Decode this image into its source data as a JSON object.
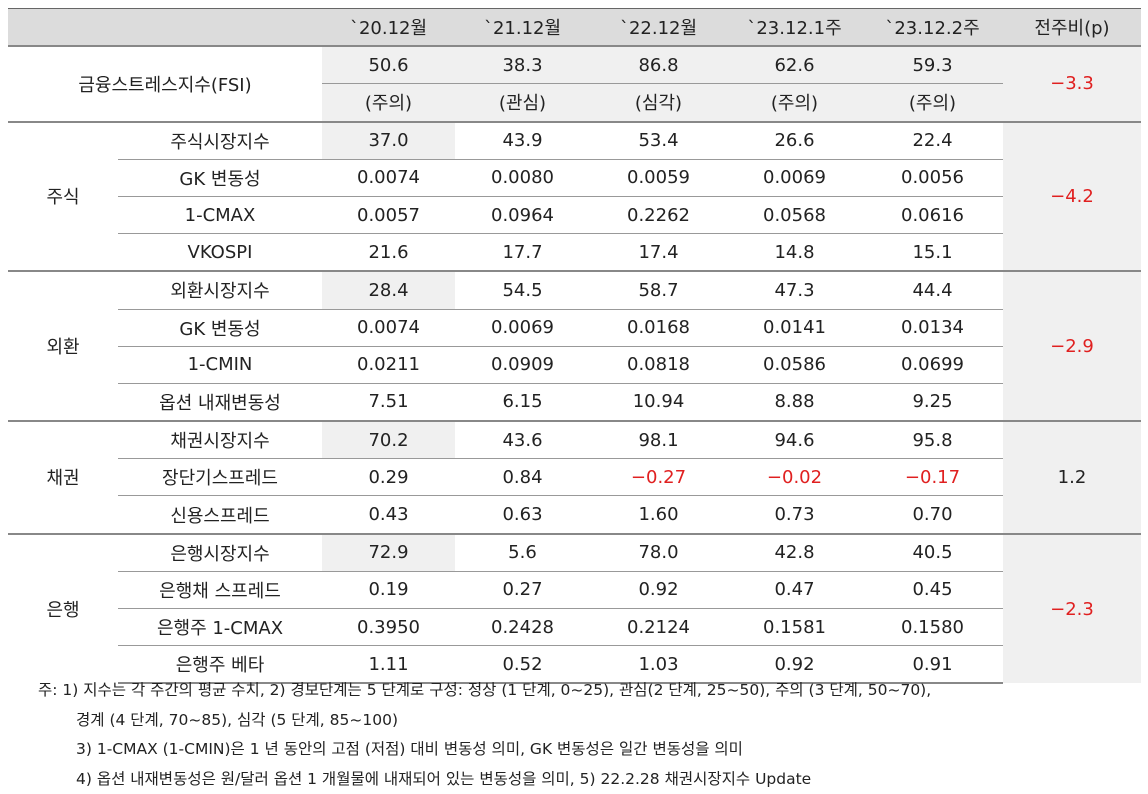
{
  "header": {
    "columns": [
      "`20.12월",
      "`21.12월",
      "`22.12월",
      "`23.12.1주",
      "`23.12.2주",
      "전주비(p)"
    ]
  },
  "fsi": {
    "label": "금융스트레스지수(FSI)",
    "values": [
      "50.6",
      "38.3",
      "86.8",
      "62.6",
      "59.3"
    ],
    "levels": [
      "(주의)",
      "(관심)",
      "(심각)",
      "(주의)",
      "(주의)"
    ],
    "change": "−3.3"
  },
  "groups": [
    {
      "label": "주식",
      "change": "−4.2",
      "rows": [
        {
          "label": "주식시장지수",
          "values": [
            "37.0",
            "43.9",
            "53.4",
            "26.6",
            "22.4"
          ]
        },
        {
          "label": "GK 변동성",
          "values": [
            "0.0074",
            "0.0080",
            "0.0059",
            "0.0069",
            "0.0056"
          ]
        },
        {
          "label": "1-CMAX",
          "values": [
            "0.0057",
            "0.0964",
            "0.2262",
            "0.0568",
            "0.0616"
          ]
        },
        {
          "label": "VKOSPI",
          "values": [
            "21.6",
            "17.7",
            "17.4",
            "14.8",
            "15.1"
          ]
        }
      ]
    },
    {
      "label": "외환",
      "change": "−2.9",
      "rows": [
        {
          "label": "외환시장지수",
          "values": [
            "28.4",
            "54.5",
            "58.7",
            "47.3",
            "44.4"
          ]
        },
        {
          "label": "GK 변동성",
          "values": [
            "0.0074",
            "0.0069",
            "0.0168",
            "0.0141",
            "0.0134"
          ]
        },
        {
          "label": "1-CMIN",
          "values": [
            "0.0211",
            "0.0909",
            "0.0818",
            "0.0586",
            "0.0699"
          ]
        },
        {
          "label": "옵션 내재변동성",
          "values": [
            "7.51",
            "6.15",
            "10.94",
            "8.88",
            "9.25"
          ]
        }
      ]
    },
    {
      "label": "채권",
      "change": "1.2",
      "rows": [
        {
          "label": "채권시장지수",
          "values": [
            "70.2",
            "43.6",
            "98.1",
            "94.6",
            "95.8"
          ]
        },
        {
          "label": "장단기스프레드",
          "values": [
            "0.29",
            "0.84",
            "−0.27",
            "−0.02",
            "−0.17"
          ]
        },
        {
          "label": "신용스프레드",
          "values": [
            "0.43",
            "0.63",
            "1.60",
            "0.73",
            "0.70"
          ]
        }
      ]
    },
    {
      "label": "은행",
      "change": "−2.3",
      "rows": [
        {
          "label": "은행시장지수",
          "values": [
            "72.9",
            "5.6",
            "78.0",
            "42.8",
            "40.5"
          ]
        },
        {
          "label": "은행채 스프레드",
          "values": [
            "0.19",
            "0.27",
            "0.92",
            "0.47",
            "0.45"
          ]
        },
        {
          "label": "은행주 1-CMAX",
          "values": [
            "0.3950",
            "0.2428",
            "0.2124",
            "0.1581",
            "0.1580"
          ]
        },
        {
          "label": "은행주 베타",
          "values": [
            "1.11",
            "0.52",
            "1.03",
            "0.92",
            "0.91"
          ]
        }
      ]
    }
  ],
  "notes": [
    "주: 1) 지수는 각 주간의 평균 수치, 2) 경보단계는 5 단계로 구성: 정상 (1 단계, 0~25), 관심(2 단계, 25~50), 주의 (3 단계, 50~70),",
    "경계 (4 단계, 70~85), 심각 (5 단계, 85~100)",
    "3) 1-CMAX (1-CMIN)은 1 년 동안의 고점 (저점) 대비 변동성 의미, GK 변동성은 일간 변동성을 의미",
    "4) 옵션 내재변동성은 원/달러 옵션 1 개월물에 내재되어 있는 변동성을 의미, 5) 22.2.28 채권시장지수 Update"
  ]
}
